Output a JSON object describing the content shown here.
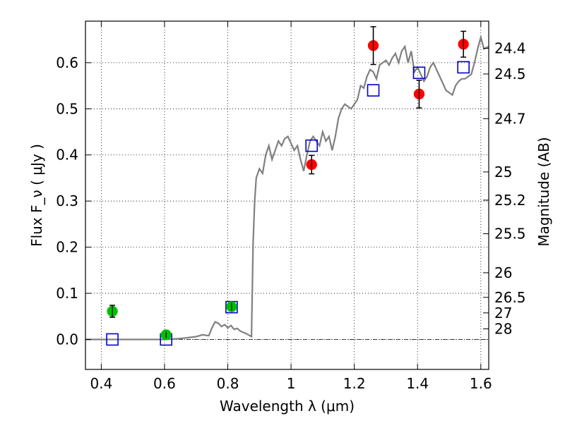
{
  "chart_data": {
    "type": "scatter",
    "xlabel": "Wavelength  λ (μm)",
    "ylabel": "Flux  F_ν  ( μJy )",
    "y2label": "Magnitude (AB)",
    "xlim": [
      0.35,
      1.625
    ],
    "ylim": [
      -0.065,
      0.69
    ],
    "grid": true,
    "x_ticks": [
      {
        "value": 0.4,
        "label": "0.4"
      },
      {
        "value": 0.6,
        "label": "0.6"
      },
      {
        "value": 0.8,
        "label": "0.8"
      },
      {
        "value": 1.0,
        "label": "1"
      },
      {
        "value": 1.2,
        "label": "1.2"
      },
      {
        "value": 1.4,
        "label": "1.4"
      },
      {
        "value": 1.6,
        "label": "1.6"
      }
    ],
    "y_ticks": [
      {
        "value": 0.0,
        "label": "0.0"
      },
      {
        "value": 0.1,
        "label": "0.1"
      },
      {
        "value": 0.2,
        "label": "0.2"
      },
      {
        "value": 0.3,
        "label": "0.3"
      },
      {
        "value": 0.4,
        "label": "0.4"
      },
      {
        "value": 0.5,
        "label": "0.5"
      },
      {
        "value": 0.6,
        "label": "0.6"
      }
    ],
    "y2_ticks": [
      {
        "mag": 24.4,
        "label": "24.4"
      },
      {
        "mag": 24.5,
        "label": "24.5"
      },
      {
        "mag": 24.7,
        "label": "24.7"
      },
      {
        "mag": 25.0,
        "label": "25"
      },
      {
        "mag": 25.2,
        "label": "25.2"
      },
      {
        "mag": 25.5,
        "label": "25.5"
      },
      {
        "mag": 26.0,
        "label": "26"
      },
      {
        "mag": 26.5,
        "label": "26.5"
      },
      {
        "mag": 27.0,
        "label": "27"
      },
      {
        "mag": 28.0,
        "label": "28"
      }
    ],
    "series": [
      {
        "kind": "line",
        "color": "#808080",
        "points": [
          [
            0.35,
            0.0
          ],
          [
            0.5,
            0.0
          ],
          [
            0.6,
            0.0
          ],
          [
            0.65,
            0.002
          ],
          [
            0.7,
            0.006
          ],
          [
            0.72,
            0.01
          ],
          [
            0.74,
            0.008
          ],
          [
            0.75,
            0.025
          ],
          [
            0.76,
            0.038
          ],
          [
            0.77,
            0.035
          ],
          [
            0.78,
            0.028
          ],
          [
            0.79,
            0.032
          ],
          [
            0.8,
            0.025
          ],
          [
            0.81,
            0.03
          ],
          [
            0.82,
            0.022
          ],
          [
            0.83,
            0.024
          ],
          [
            0.84,
            0.018
          ],
          [
            0.86,
            0.012
          ],
          [
            0.875,
            0.006
          ],
          [
            0.88,
            0.21
          ],
          [
            0.885,
            0.3
          ],
          [
            0.89,
            0.35
          ],
          [
            0.9,
            0.37
          ],
          [
            0.91,
            0.36
          ],
          [
            0.92,
            0.4
          ],
          [
            0.93,
            0.42
          ],
          [
            0.94,
            0.39
          ],
          [
            0.95,
            0.41
          ],
          [
            0.96,
            0.43
          ],
          [
            0.97,
            0.42
          ],
          [
            0.98,
            0.435
          ],
          [
            0.99,
            0.44
          ],
          [
            1.0,
            0.425
          ],
          [
            1.01,
            0.41
          ],
          [
            1.02,
            0.42
          ],
          [
            1.03,
            0.39
          ],
          [
            1.04,
            0.365
          ],
          [
            1.05,
            0.4
          ],
          [
            1.06,
            0.43
          ],
          [
            1.07,
            0.44
          ],
          [
            1.08,
            0.43
          ],
          [
            1.09,
            0.42
          ],
          [
            1.1,
            0.45
          ],
          [
            1.11,
            0.43
          ],
          [
            1.12,
            0.44
          ],
          [
            1.13,
            0.41
          ],
          [
            1.14,
            0.44
          ],
          [
            1.15,
            0.48
          ],
          [
            1.16,
            0.5
          ],
          [
            1.17,
            0.51
          ],
          [
            1.18,
            0.505
          ],
          [
            1.19,
            0.5
          ],
          [
            1.2,
            0.51
          ],
          [
            1.21,
            0.52
          ],
          [
            1.22,
            0.55
          ],
          [
            1.23,
            0.545
          ],
          [
            1.24,
            0.57
          ],
          [
            1.25,
            0.585
          ],
          [
            1.26,
            0.58
          ],
          [
            1.27,
            0.565
          ],
          [
            1.28,
            0.595
          ],
          [
            1.29,
            0.6
          ],
          [
            1.3,
            0.605
          ],
          [
            1.31,
            0.595
          ],
          [
            1.32,
            0.61
          ],
          [
            1.33,
            0.62
          ],
          [
            1.34,
            0.6
          ],
          [
            1.35,
            0.625
          ],
          [
            1.36,
            0.635
          ],
          [
            1.37,
            0.6
          ],
          [
            1.38,
            0.625
          ],
          [
            1.39,
            0.58
          ],
          [
            1.4,
            0.59
          ],
          [
            1.41,
            0.575
          ],
          [
            1.42,
            0.56
          ],
          [
            1.43,
            0.57
          ],
          [
            1.44,
            0.59
          ],
          [
            1.45,
            0.6
          ],
          [
            1.46,
            0.585
          ],
          [
            1.47,
            0.57
          ],
          [
            1.48,
            0.555
          ],
          [
            1.49,
            0.54
          ],
          [
            1.5,
            0.535
          ],
          [
            1.51,
            0.53
          ],
          [
            1.52,
            0.55
          ],
          [
            1.53,
            0.56
          ],
          [
            1.54,
            0.565
          ],
          [
            1.55,
            0.565
          ],
          [
            1.56,
            0.57
          ],
          [
            1.57,
            0.575
          ],
          [
            1.58,
            0.6
          ],
          [
            1.59,
            0.63
          ],
          [
            1.6,
            0.655
          ],
          [
            1.61,
            0.63
          ],
          [
            1.625,
            0.635
          ]
        ]
      },
      {
        "kind": "squares",
        "color": "#0000cc",
        "points": [
          [
            0.435,
            0.0
          ],
          [
            0.605,
            0.0
          ],
          [
            0.812,
            0.07
          ],
          [
            1.065,
            0.42
          ],
          [
            1.26,
            0.54
          ],
          [
            1.405,
            0.578
          ],
          [
            1.545,
            0.59
          ]
        ]
      },
      {
        "kind": "circles",
        "color": "#00c000",
        "points": [
          {
            "x": 0.435,
            "y": 0.061,
            "err": 0.013
          },
          {
            "x": 0.605,
            "y": 0.01,
            "err": 0.008
          },
          {
            "x": 0.812,
            "y": 0.071,
            "err": 0.009
          }
        ]
      },
      {
        "kind": "circles",
        "color": "#ff0000",
        "points": [
          {
            "x": 1.065,
            "y": 0.379,
            "err": 0.02
          },
          {
            "x": 1.26,
            "y": 0.637,
            "err": 0.041
          },
          {
            "x": 1.405,
            "y": 0.532,
            "err": 0.03
          },
          {
            "x": 1.545,
            "y": 0.64,
            "err": 0.028
          }
        ]
      }
    ]
  }
}
